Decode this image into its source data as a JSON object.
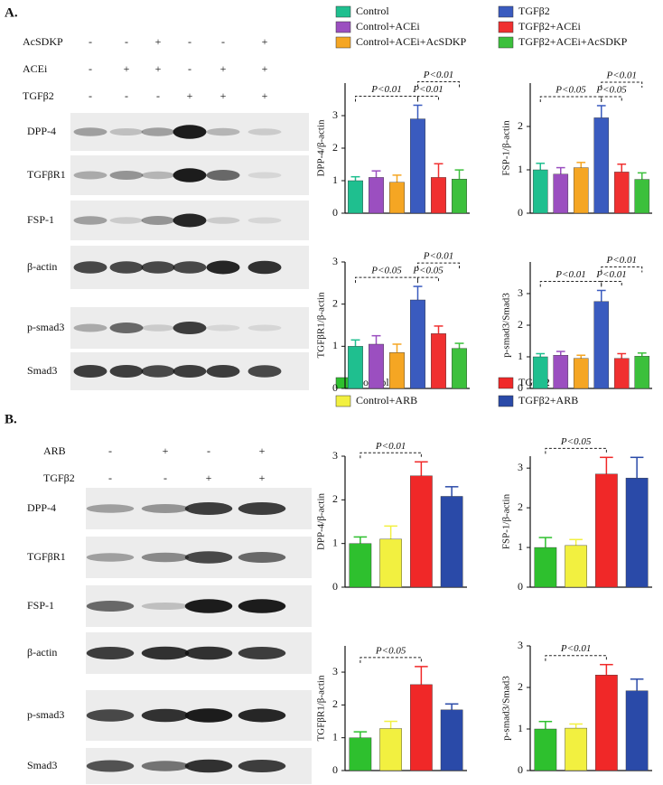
{
  "panels": [
    {
      "label": "A.",
      "treatments": [
        {
          "name": "AcSDKP",
          "signs": [
            "-",
            "-",
            "+",
            "-",
            "-",
            "+"
          ]
        },
        {
          "name": "ACEi",
          "signs": [
            "-",
            "+",
            "+",
            "-",
            "+",
            "+"
          ]
        },
        {
          "name": "TGFβ2",
          "signs": [
            "-",
            "-",
            "-",
            "+",
            "+",
            "+"
          ]
        }
      ],
      "blots": [
        "DPP-4",
        "TGFβR1",
        "FSP-1",
        "β-actin",
        "p-smad3",
        "Smad3"
      ],
      "legend": [
        {
          "name": "Control",
          "color": "#1fbf8f"
        },
        {
          "name": "Control+ACEi",
          "color": "#9b4fc0"
        },
        {
          "name": "Control+ACEi+AcSDKP",
          "color": "#f5a623"
        },
        {
          "name": "TGFβ2",
          "color": "#3a5bbf"
        },
        {
          "name": "TGFβ2+ACEi",
          "color": "#f03030"
        },
        {
          "name": "TGFβ2+ACEi+AcSDKP",
          "color": "#3cc03c"
        }
      ]
    },
    {
      "label": "B.",
      "treatments": [
        {
          "name": "ARB",
          "signs": [
            "-",
            "+",
            "-",
            "+"
          ]
        },
        {
          "name": "TGFβ2",
          "signs": [
            "-",
            "-",
            "+",
            "+"
          ]
        }
      ],
      "blots": [
        "DPP-4",
        "TGFβR1",
        "FSP-1",
        "β-actin",
        "p-smad3",
        "Smad3"
      ],
      "legend": [
        {
          "name": "Control",
          "color": "#2ec02e"
        },
        {
          "name": "Control+ARB",
          "color": "#f2f040"
        },
        {
          "name": "TGFβ2",
          "color": "#f02828"
        },
        {
          "name": "TGFβ2+ARB",
          "color": "#2a4aa8"
        }
      ]
    }
  ],
  "chart_data": [
    {
      "type": "bar",
      "ylabel": "DPP-4/β-actin",
      "values": [
        1.0,
        1.1,
        0.95,
        2.9,
        1.1,
        1.05
      ],
      "errors": [
        0.12,
        0.2,
        0.22,
        0.42,
        0.42,
        0.28
      ],
      "ylim": [
        0,
        4
      ],
      "yticks": [
        0,
        1,
        2,
        3
      ],
      "comparisons": [
        {
          "label": "P<0.01",
          "bars": [
            0,
            3
          ]
        },
        {
          "label": "P<0.01",
          "bars": [
            3,
            4
          ]
        },
        {
          "label": "P<0.01",
          "bars": [
            3,
            5
          ]
        }
      ]
    },
    {
      "type": "bar",
      "ylabel": "FSP-1/β-actin",
      "values": [
        1.0,
        0.9,
        1.05,
        2.2,
        0.95,
        0.78
      ],
      "errors": [
        0.15,
        0.15,
        0.12,
        0.28,
        0.18,
        0.15
      ],
      "ylim": [
        0,
        3
      ],
      "yticks": [
        0,
        1,
        2
      ],
      "comparisons": [
        {
          "label": "P<0.05",
          "bars": [
            0,
            3
          ]
        },
        {
          "label": "P<0.05",
          "bars": [
            3,
            4
          ]
        },
        {
          "label": "P<0.01",
          "bars": [
            3,
            5
          ]
        }
      ]
    },
    {
      "type": "bar",
      "ylabel": "TGFβR1/β-actin",
      "values": [
        1.0,
        1.05,
        0.85,
        2.1,
        1.3,
        0.95
      ],
      "errors": [
        0.15,
        0.2,
        0.2,
        0.32,
        0.18,
        0.12
      ],
      "ylim": [
        0,
        3
      ],
      "yticks": [
        0,
        1,
        2,
        3
      ],
      "comparisons": [
        {
          "label": "P<0.05",
          "bars": [
            0,
            3
          ]
        },
        {
          "label": "P<0.05",
          "bars": [
            3,
            4
          ]
        },
        {
          "label": "P<0.01",
          "bars": [
            3,
            5
          ]
        }
      ]
    },
    {
      "type": "bar",
      "ylabel": "p-smad3/Smad3",
      "values": [
        1.0,
        1.05,
        0.95,
        2.75,
        0.95,
        1.02
      ],
      "errors": [
        0.1,
        0.12,
        0.1,
        0.35,
        0.15,
        0.1
      ],
      "ylim": [
        0,
        4
      ],
      "yticks": [
        0,
        1,
        2,
        3
      ],
      "comparisons": [
        {
          "label": "P<0.01",
          "bars": [
            0,
            3
          ]
        },
        {
          "label": "P<0.01",
          "bars": [
            3,
            4
          ]
        },
        {
          "label": "P<0.01",
          "bars": [
            3,
            5
          ]
        }
      ]
    },
    {
      "type": "bar",
      "ylabel": "DPP-4/β-actin",
      "values": [
        1.0,
        1.1,
        2.55,
        2.08
      ],
      "errors": [
        0.15,
        0.3,
        0.32,
        0.22
      ],
      "ylim": [
        0,
        3
      ],
      "yticks": [
        0,
        1,
        2,
        3
      ],
      "comparisons": [
        {
          "label": "P<0.01",
          "bars": [
            0,
            2
          ]
        }
      ]
    },
    {
      "type": "bar",
      "ylabel": "FSP-1/β-actin",
      "values": [
        1.0,
        1.05,
        2.85,
        2.75
      ],
      "errors": [
        0.25,
        0.15,
        0.42,
        0.52
      ],
      "ylim": [
        0,
        3.3
      ],
      "yticks": [
        0,
        1,
        2,
        3
      ],
      "comparisons": [
        {
          "label": "P<0.05",
          "bars": [
            0,
            2
          ]
        }
      ]
    },
    {
      "type": "bar",
      "ylabel": "TGFβR1/β-actin",
      "values": [
        1.0,
        1.28,
        2.62,
        1.85
      ],
      "errors": [
        0.18,
        0.22,
        0.55,
        0.18
      ],
      "ylim": [
        0,
        3.8
      ],
      "yticks": [
        0,
        1,
        2,
        3
      ],
      "comparisons": [
        {
          "label": "P<0.05",
          "bars": [
            0,
            2
          ]
        }
      ]
    },
    {
      "type": "bar",
      "ylabel": "p-smad3/Smad3",
      "values": [
        1.0,
        1.02,
        2.3,
        1.92
      ],
      "errors": [
        0.18,
        0.1,
        0.25,
        0.28
      ],
      "ylim": [
        0,
        3
      ],
      "yticks": [
        0,
        1,
        2,
        3
      ],
      "comparisons": [
        {
          "label": "P<0.01",
          "bars": [
            0,
            2
          ]
        }
      ]
    }
  ]
}
